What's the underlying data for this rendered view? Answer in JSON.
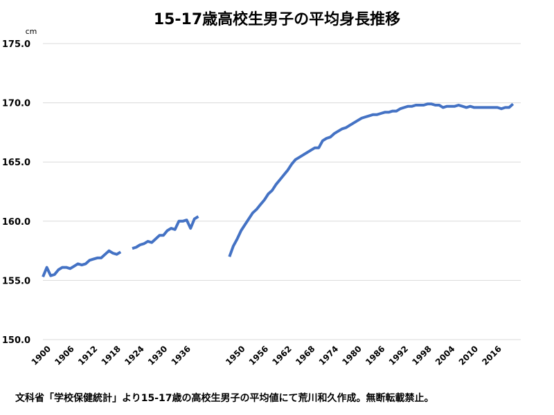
{
  "chart_data": {
    "type": "line",
    "title": "15-17歳高校生男子の平均身長推移",
    "ylabel": "cm",
    "xlabel": "",
    "xlim": [
      1900,
      2023
    ],
    "ylim": [
      150,
      175
    ],
    "yticks": [
      "150.0",
      "155.0",
      "160.0",
      "165.0",
      "170.0",
      "175.0"
    ],
    "xticks": [
      "1900",
      "1906",
      "1912",
      "1918",
      "1924",
      "1930",
      "1936",
      "1950",
      "1956",
      "1962",
      "1968",
      "1974",
      "1980",
      "1986",
      "1992",
      "1998",
      "2004",
      "2010",
      "2016"
    ],
    "grid": true,
    "series": [
      {
        "color": "#4472c4",
        "segments": [
          [
            [
              1900,
              155.3
            ],
            [
              1901,
              156.1
            ],
            [
              1902,
              155.4
            ],
            [
              1903,
              155.5
            ],
            [
              1904,
              155.9
            ],
            [
              1905,
              156.1
            ],
            [
              1906,
              156.1
            ],
            [
              1907,
              156.0
            ],
            [
              1908,
              156.2
            ],
            [
              1909,
              156.4
            ],
            [
              1910,
              156.3
            ],
            [
              1911,
              156.4
            ],
            [
              1912,
              156.7
            ],
            [
              1913,
              156.8
            ],
            [
              1914,
              156.9
            ],
            [
              1915,
              156.9
            ],
            [
              1916,
              157.2
            ],
            [
              1917,
              157.5
            ],
            [
              1918,
              157.3
            ],
            [
              1919,
              157.2
            ],
            [
              1920,
              157.4
            ]
          ],
          [
            [
              1923,
              157.7
            ],
            [
              1924,
              157.8
            ],
            [
              1925,
              158.0
            ],
            [
              1926,
              158.1
            ],
            [
              1927,
              158.3
            ],
            [
              1928,
              158.2
            ],
            [
              1929,
              158.5
            ],
            [
              1930,
              158.8
            ],
            [
              1931,
              158.8
            ],
            [
              1932,
              159.2
            ],
            [
              1933,
              159.4
            ],
            [
              1934,
              159.3
            ],
            [
              1935,
              160.0
            ],
            [
              1936,
              160.0
            ],
            [
              1937,
              160.1
            ],
            [
              1938,
              159.4
            ],
            [
              1939,
              160.2
            ],
            [
              1940,
              160.4
            ]
          ],
          [
            [
              1948,
              157.0
            ],
            [
              1949,
              157.9
            ],
            [
              1950,
              158.5
            ],
            [
              1951,
              159.2
            ],
            [
              1952,
              159.7
            ],
            [
              1953,
              160.2
            ],
            [
              1954,
              160.7
            ],
            [
              1955,
              161.0
            ],
            [
              1956,
              161.4
            ],
            [
              1957,
              161.8
            ],
            [
              1958,
              162.3
            ],
            [
              1959,
              162.6
            ],
            [
              1960,
              163.1
            ],
            [
              1961,
              163.5
            ],
            [
              1962,
              163.9
            ],
            [
              1963,
              164.3
            ],
            [
              1964,
              164.8
            ],
            [
              1965,
              165.2
            ],
            [
              1966,
              165.4
            ],
            [
              1967,
              165.6
            ],
            [
              1968,
              165.8
            ],
            [
              1969,
              166.0
            ],
            [
              1970,
              166.2
            ],
            [
              1971,
              166.2
            ],
            [
              1972,
              166.8
            ],
            [
              1973,
              167.0
            ],
            [
              1974,
              167.1
            ],
            [
              1975,
              167.4
            ],
            [
              1976,
              167.6
            ],
            [
              1977,
              167.8
            ],
            [
              1978,
              167.9
            ],
            [
              1979,
              168.1
            ],
            [
              1980,
              168.3
            ],
            [
              1981,
              168.5
            ],
            [
              1982,
              168.7
            ],
            [
              1983,
              168.8
            ],
            [
              1984,
              168.9
            ],
            [
              1985,
              169.0
            ],
            [
              1986,
              169.0
            ],
            [
              1987,
              169.1
            ],
            [
              1988,
              169.2
            ],
            [
              1989,
              169.2
            ],
            [
              1990,
              169.3
            ],
            [
              1991,
              169.3
            ],
            [
              1992,
              169.5
            ],
            [
              1993,
              169.6
            ],
            [
              1994,
              169.7
            ],
            [
              1995,
              169.7
            ],
            [
              1996,
              169.8
            ],
            [
              1997,
              169.8
            ],
            [
              1998,
              169.8
            ],
            [
              1999,
              169.9
            ],
            [
              2000,
              169.9
            ],
            [
              2001,
              169.8
            ],
            [
              2002,
              169.8
            ],
            [
              2003,
              169.6
            ],
            [
              2004,
              169.7
            ],
            [
              2005,
              169.7
            ],
            [
              2006,
              169.7
            ],
            [
              2007,
              169.8
            ],
            [
              2008,
              169.7
            ],
            [
              2009,
              169.6
            ],
            [
              2010,
              169.7
            ],
            [
              2011,
              169.6
            ],
            [
              2012,
              169.6
            ],
            [
              2013,
              169.6
            ],
            [
              2014,
              169.6
            ],
            [
              2015,
              169.6
            ],
            [
              2016,
              169.6
            ],
            [
              2017,
              169.6
            ],
            [
              2018,
              169.5
            ],
            [
              2019,
              169.6
            ],
            [
              2020,
              169.6
            ],
            [
              2021,
              169.9
            ]
          ]
        ]
      }
    ]
  },
  "footer_note": "文科省「学校保健統計」より15-17歳の高校生男子の平均値にて荒川和久作成。無断転載禁止。"
}
